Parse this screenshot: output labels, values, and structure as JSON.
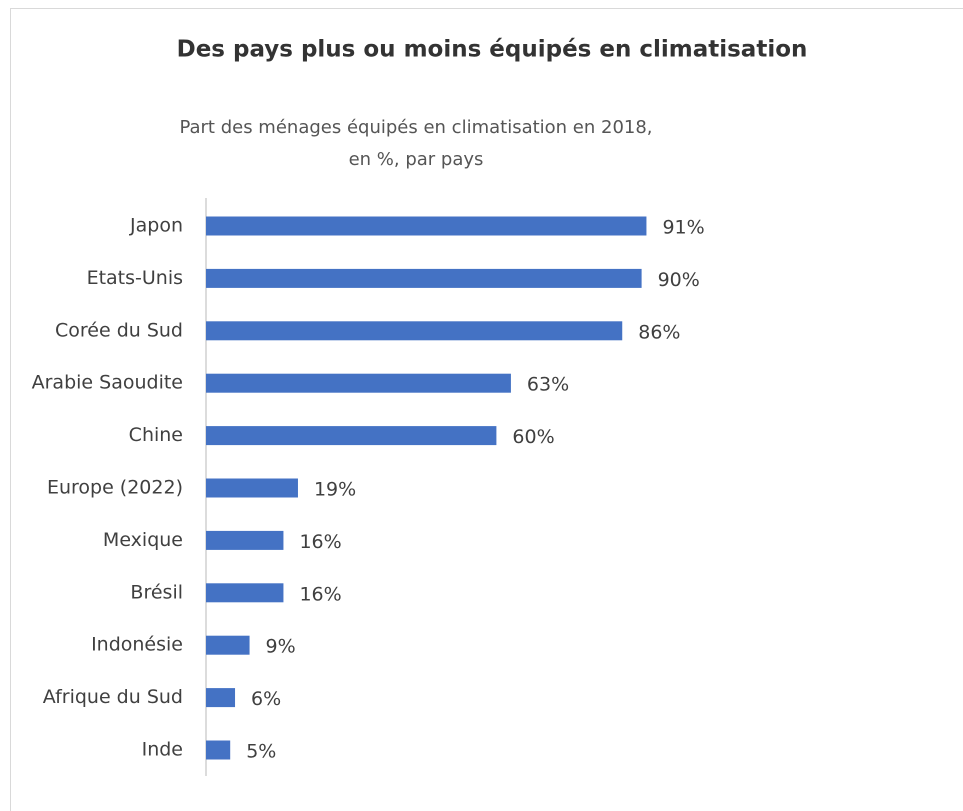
{
  "chart_data": {
    "type": "barh",
    "title": "Des pays plus ou moins équipés en climatisation",
    "subtitle": [
      "Part des ménages équipés en climatisation en 2018,",
      "en %, par pays"
    ],
    "categories": [
      "Japon",
      "Etats-Unis",
      "Corée du Sud",
      "Arabie Saoudite",
      "Chine",
      "Europe (2022)",
      "Mexique",
      "Brésil",
      "Indonésie",
      "Afrique du Sud",
      "Inde"
    ],
    "values": [
      91,
      90,
      86,
      63,
      60,
      19,
      16,
      16,
      9,
      6,
      5
    ],
    "value_labels": [
      "91%",
      "90%",
      "86%",
      "63%",
      "60%",
      "19%",
      "16%",
      "16%",
      "9%",
      "6%",
      "5%"
    ],
    "color": "#4472c4",
    "xlim": [
      0,
      100
    ]
  }
}
